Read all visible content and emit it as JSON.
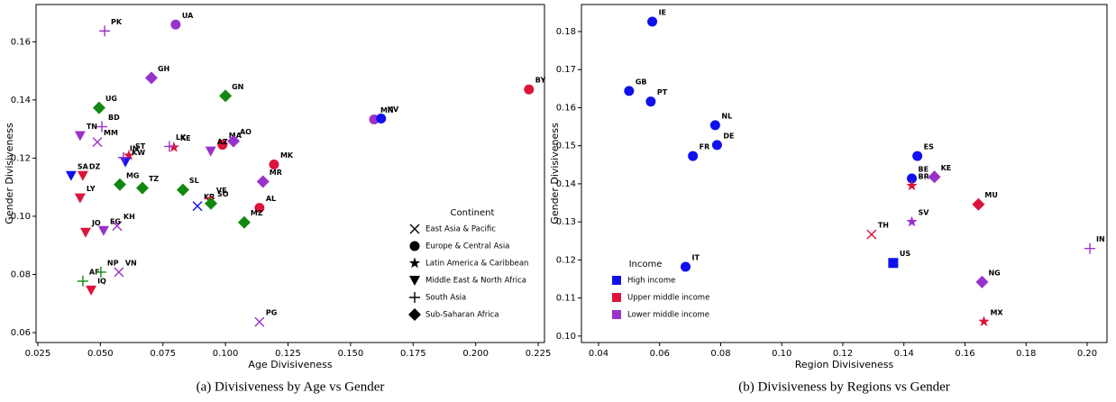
{
  "chart_data": [
    {
      "type": "scatter",
      "caption": "(a)  Divisiveness by Age vs Gender",
      "xlabel": "Age Divisiveness",
      "ylabel": "Gender Divisiveness",
      "xlim": [
        0.0243,
        0.2275
      ],
      "ylim": [
        0.0566,
        0.1728
      ],
      "xticks": [
        0.025,
        {
          "value": 0.05,
          "label": "0.050"
        },
        0.075,
        {
          "value": 0.1,
          "label": "0.100"
        },
        0.125,
        {
          "value": 0.15,
          "label": "0.150"
        },
        0.175,
        {
          "value": 0.2,
          "label": "0.200"
        },
        0.225
      ],
      "yticks": [
        0.06,
        0.08,
        {
          "value": 0.1,
          "label": "0.10"
        },
        0.12,
        0.14,
        0.16
      ],
      "legend_title": "Continent",
      "legend_loc": "lower right",
      "legend_color": "#000000",
      "series": [
        {
          "name": "East Asia & Pacific",
          "marker": "x",
          "labels": [
            "MM",
            "KR",
            "KH",
            "VN",
            "PG"
          ],
          "x": [
            0.0488,
            0.0888,
            0.0567,
            0.0574,
            0.1136
          ],
          "values": [
            0.1255,
            0.1035,
            0.0967,
            0.0808,
            0.0637
          ],
          "colors": [
            "#9932cc",
            "#1010ee",
            "#9932cc",
            "#9932cc",
            "#9932cc"
          ]
        },
        {
          "name": "Europe & Central Asia",
          "marker": "o",
          "labels": [
            "UA",
            "MA",
            "MK",
            "AL",
            "MN",
            "KV",
            "BY"
          ],
          "x": [
            0.0801,
            0.0988,
            0.1194,
            0.1136,
            0.1594,
            0.1622,
            0.2213
          ],
          "values": [
            0.1659,
            0.1246,
            0.1178,
            0.1029,
            0.1333,
            0.1336,
            0.1436
          ],
          "colors": [
            "#9932cc",
            "#dc143c",
            "#dc143c",
            "#dc143c",
            "#9932cc",
            "#1010ee",
            "#dc143c"
          ]
        },
        {
          "name": "Latin America & Caribbean",
          "marker": "*",
          "labels": [
            "KE",
            "ST",
            "VE"
          ],
          "x": [
            0.0794,
            0.0614,
            0.0938
          ],
          "values": [
            0.1237,
            0.1209,
            0.1057
          ],
          "colors": [
            "#dc143c",
            "#dc143c",
            "#dc143c"
          ]
        },
        {
          "name": "Middle East & North Africa",
          "marker": "v",
          "labels": [
            "TN",
            "KW",
            "AZ",
            "SA",
            "DZ",
            "LY",
            "JO",
            "EG",
            "IQ"
          ],
          "x": [
            0.0419,
            0.06,
            0.0941,
            0.0383,
            0.043,
            0.0419,
            0.0441,
            0.0513,
            0.0463
          ],
          "values": [
            0.1277,
            0.1187,
            0.1224,
            0.114,
            0.114,
            0.1063,
            0.0945,
            0.0951,
            0.0746
          ],
          "colors": [
            "#9932cc",
            "#1010ee",
            "#9932cc",
            "#1010ee",
            "#dc143c",
            "#dc143c",
            "#dc143c",
            "#9932cc",
            "#dc143c"
          ]
        },
        {
          "name": "South Asia",
          "marker": "+",
          "labels": [
            "PK",
            "BD",
            "LK",
            "IN",
            "AF",
            "NP"
          ],
          "x": [
            0.0517,
            0.0506,
            0.0776,
            0.0592,
            0.043,
            0.0502
          ],
          "values": [
            0.1637,
            0.1308,
            0.124,
            0.1202,
            0.0777,
            0.0808
          ],
          "colors": [
            "#9932cc",
            "#9932cc",
            "#9932cc",
            "#9932cc",
            "#118811",
            "#118811"
          ]
        },
        {
          "name": "Sub-Saharan Africa",
          "marker": "D",
          "labels": [
            "GH",
            "GN",
            "UG",
            "AO",
            "MR",
            "MG",
            "TZ",
            "SL",
            "SO",
            "MZ"
          ],
          "x": [
            0.0704,
            0.1,
            0.0495,
            0.1032,
            0.115,
            0.0578,
            0.0668,
            0.083,
            0.0942,
            0.1075
          ],
          "values": [
            0.1476,
            0.1414,
            0.1373,
            0.1258,
            0.1119,
            0.1109,
            0.1097,
            0.1091,
            0.1044,
            0.0979
          ],
          "colors": [
            "#9932cc",
            "#118811",
            "#118811",
            "#9932cc",
            "#9932cc",
            "#118811",
            "#118811",
            "#118811",
            "#118811",
            "#118811"
          ]
        }
      ]
    },
    {
      "type": "scatter",
      "caption": "(b)  Divisiveness by Regions vs Gender",
      "xlabel": "Region Divisiveness",
      "ylabel": "Gender Divisiveness",
      "xlim": [
        0.0344,
        0.2065
      ],
      "ylim": [
        0.0983,
        0.1871
      ],
      "xticks": [
        0.04,
        0.06,
        0.08,
        {
          "value": 0.1,
          "label": "0.10"
        },
        0.12,
        0.14,
        0.16,
        0.18,
        {
          "value": 0.2,
          "label": "0.20"
        }
      ],
      "yticks": [
        {
          "value": 0.1,
          "label": "0.10"
        },
        0.11,
        0.12,
        0.13,
        0.14,
        0.15,
        0.16,
        0.17,
        0.18
      ],
      "legend_title": "Income",
      "legend_loc": "lower left",
      "series": [
        {
          "name": "High income",
          "color": "#1010ee",
          "labels": [
            "IE",
            "GB",
            "PT",
            "NL",
            "DE",
            "FR",
            "ES",
            "BE",
            "US",
            "IT"
          ],
          "markers": [
            "o",
            "o",
            "o",
            "o",
            "o",
            "o",
            "o",
            "o",
            "s",
            "o"
          ],
          "x": [
            0.0576,
            0.05,
            0.0571,
            0.0782,
            0.0788,
            0.0709,
            0.1444,
            0.1426,
            0.1365,
            0.0685
          ],
          "values": [
            0.1826,
            0.1644,
            0.1616,
            0.1554,
            0.1502,
            0.1473,
            0.1473,
            0.1414,
            0.1192,
            0.1182
          ]
        },
        {
          "name": "Upper middle income",
          "color": "#dc143c",
          "labels": [
            "BR",
            "MU",
            "TH",
            "MX"
          ],
          "markers": [
            "*",
            "D",
            "x",
            "*"
          ],
          "x": [
            0.1426,
            0.1644,
            0.1294,
            0.1662
          ],
          "values": [
            0.1395,
            0.1346,
            0.1267,
            0.1038
          ]
        },
        {
          "name": "Lower middle income",
          "color": "#9932cc",
          "labels": [
            "KE",
            "SV",
            "NG",
            "IN"
          ],
          "markers": [
            "D",
            "*",
            "D",
            "+"
          ],
          "x": [
            0.15,
            0.1426,
            0.1656,
            0.2009
          ],
          "values": [
            0.1418,
            0.13,
            0.1142,
            0.123
          ]
        }
      ]
    }
  ]
}
